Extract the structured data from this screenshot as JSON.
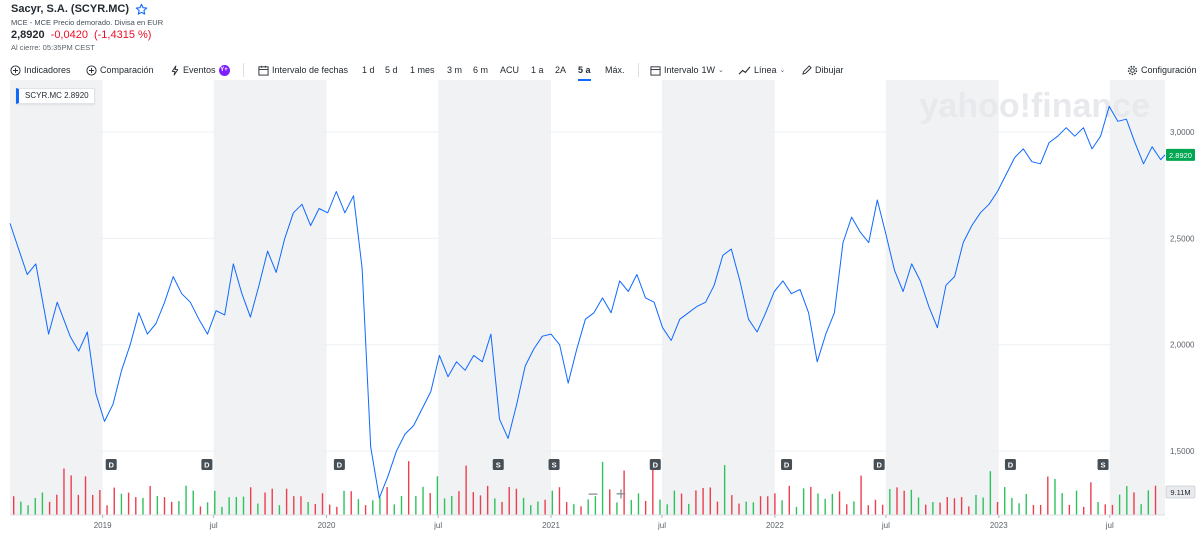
{
  "header": {
    "title": "Sacyr, S.A. (SCYR.MC)",
    "subtitle": "MCE - MCE Precio demorado. Divisa en EUR",
    "price": "2,8920",
    "change": "-0,0420",
    "change_pct": "(-1,4315 %)",
    "close_note": "Al cierre: 05:35PM CEST"
  },
  "toolbar": {
    "indicators": "Indicadores",
    "comparison": "Comparación",
    "events": "Eventos",
    "events_badge": "Y+",
    "date_range": "Intervalo de fechas",
    "ranges": [
      "1 d",
      "5 d",
      "1 mes",
      "3 m",
      "6 m",
      "ACU",
      "1 a",
      "2A",
      "5 a",
      "Máx."
    ],
    "active_range": "5 a",
    "interval": "Intervalo",
    "interval_value": "1W",
    "line": "Línea",
    "draw": "Dibujar",
    "settings": "Configuración"
  },
  "watermark": "yahoo!finance",
  "legend": {
    "symbol": "SCYR.MC",
    "value": "2.8920"
  },
  "colors": {
    "line": "#0f69ff",
    "up": "#2ec25e",
    "down": "#eb3f4f",
    "last_tag": "#00a651",
    "shade": "#f1f2f4",
    "grid": "#eef0f2"
  },
  "chart_data": {
    "type": "line",
    "series": [
      {
        "name": "SCYR.MC"
      }
    ],
    "x_start": "2018-08-03",
    "x_end": "2023-09-29",
    "ylim": [
      1.2,
      3.15
    ],
    "y_ticks": [
      1.5,
      2.0,
      2.5,
      3.0
    ],
    "y_tick_labels": [
      "1,5000",
      "2,0000",
      "2,5000",
      "3,0000"
    ],
    "x_ticks": [
      {
        "date": "2019-01-01",
        "label": "2019"
      },
      {
        "date": "2019-07-01",
        "label": "jul"
      },
      {
        "date": "2020-01-01",
        "label": "2020"
      },
      {
        "date": "2020-07-01",
        "label": "jul"
      },
      {
        "date": "2021-01-01",
        "label": "2021"
      },
      {
        "date": "2021-07-01",
        "label": "jul"
      },
      {
        "date": "2022-01-01",
        "label": "2022"
      },
      {
        "date": "2022-07-01",
        "label": "jul"
      },
      {
        "date": "2023-01-01",
        "label": "2023"
      },
      {
        "date": "2023-07-01",
        "label": "jul"
      }
    ],
    "last_value": 2.892,
    "last_value_label": "2.8920",
    "volume_label": "9.11M",
    "points": [
      [
        "2018-08-03",
        2.57
      ],
      [
        "2018-08-31",
        2.33
      ],
      [
        "2018-09-14",
        2.38
      ],
      [
        "2018-10-05",
        2.05
      ],
      [
        "2018-10-19",
        2.2
      ],
      [
        "2018-11-09",
        2.04
      ],
      [
        "2018-11-23",
        1.97
      ],
      [
        "2018-12-07",
        2.06
      ],
      [
        "2018-12-21",
        1.77
      ],
      [
        "2019-01-04",
        1.64
      ],
      [
        "2019-01-18",
        1.72
      ],
      [
        "2019-02-01",
        1.88
      ],
      [
        "2019-02-15",
        2.0
      ],
      [
        "2019-03-01",
        2.15
      ],
      [
        "2019-03-15",
        2.05
      ],
      [
        "2019-03-29",
        2.1
      ],
      [
        "2019-04-12",
        2.2
      ],
      [
        "2019-04-26",
        2.32
      ],
      [
        "2019-05-10",
        2.24
      ],
      [
        "2019-05-24",
        2.2
      ],
      [
        "2019-06-07",
        2.12
      ],
      [
        "2019-06-21",
        2.05
      ],
      [
        "2019-07-05",
        2.16
      ],
      [
        "2019-07-19",
        2.14
      ],
      [
        "2019-08-02",
        2.38
      ],
      [
        "2019-08-16",
        2.24
      ],
      [
        "2019-08-30",
        2.13
      ],
      [
        "2019-09-13",
        2.28
      ],
      [
        "2019-09-27",
        2.44
      ],
      [
        "2019-10-11",
        2.34
      ],
      [
        "2019-10-25",
        2.5
      ],
      [
        "2019-11-08",
        2.62
      ],
      [
        "2019-11-22",
        2.66
      ],
      [
        "2019-12-06",
        2.56
      ],
      [
        "2019-12-20",
        2.64
      ],
      [
        "2020-01-03",
        2.62
      ],
      [
        "2020-01-17",
        2.72
      ],
      [
        "2020-01-31",
        2.62
      ],
      [
        "2020-02-14",
        2.7
      ],
      [
        "2020-02-28",
        2.36
      ],
      [
        "2020-03-13",
        1.52
      ],
      [
        "2020-03-27",
        1.28
      ],
      [
        "2020-04-10",
        1.38
      ],
      [
        "2020-04-24",
        1.5
      ],
      [
        "2020-05-08",
        1.58
      ],
      [
        "2020-05-22",
        1.62
      ],
      [
        "2020-06-05",
        1.7
      ],
      [
        "2020-06-19",
        1.78
      ],
      [
        "2020-07-03",
        1.95
      ],
      [
        "2020-07-17",
        1.85
      ],
      [
        "2020-07-31",
        1.92
      ],
      [
        "2020-08-14",
        1.88
      ],
      [
        "2020-08-28",
        1.95
      ],
      [
        "2020-09-11",
        1.92
      ],
      [
        "2020-09-25",
        2.05
      ],
      [
        "2020-10-09",
        1.65
      ],
      [
        "2020-10-23",
        1.56
      ],
      [
        "2020-11-06",
        1.72
      ],
      [
        "2020-11-20",
        1.9
      ],
      [
        "2020-12-04",
        1.98
      ],
      [
        "2020-12-18",
        2.04
      ],
      [
        "2021-01-01",
        2.05
      ],
      [
        "2021-01-15",
        2.0
      ],
      [
        "2021-01-29",
        1.82
      ],
      [
        "2021-02-12",
        1.98
      ],
      [
        "2021-02-26",
        2.12
      ],
      [
        "2021-03-12",
        2.15
      ],
      [
        "2021-03-26",
        2.22
      ],
      [
        "2021-04-09",
        2.15
      ],
      [
        "2021-04-23",
        2.3
      ],
      [
        "2021-05-07",
        2.25
      ],
      [
        "2021-05-21",
        2.33
      ],
      [
        "2021-06-04",
        2.22
      ],
      [
        "2021-06-18",
        2.2
      ],
      [
        "2021-07-02",
        2.08
      ],
      [
        "2021-07-16",
        2.02
      ],
      [
        "2021-07-30",
        2.12
      ],
      [
        "2021-08-13",
        2.15
      ],
      [
        "2021-08-27",
        2.18
      ],
      [
        "2021-09-10",
        2.2
      ],
      [
        "2021-09-24",
        2.28
      ],
      [
        "2021-10-08",
        2.42
      ],
      [
        "2021-10-22",
        2.45
      ],
      [
        "2021-11-05",
        2.3
      ],
      [
        "2021-11-19",
        2.12
      ],
      [
        "2021-12-03",
        2.06
      ],
      [
        "2021-12-17",
        2.15
      ],
      [
        "2021-12-31",
        2.25
      ],
      [
        "2022-01-14",
        2.3
      ],
      [
        "2022-01-28",
        2.24
      ],
      [
        "2022-02-11",
        2.26
      ],
      [
        "2022-02-25",
        2.15
      ],
      [
        "2022-03-11",
        1.92
      ],
      [
        "2022-03-25",
        2.05
      ],
      [
        "2022-04-08",
        2.15
      ],
      [
        "2022-04-22",
        2.48
      ],
      [
        "2022-05-06",
        2.6
      ],
      [
        "2022-05-20",
        2.53
      ],
      [
        "2022-06-03",
        2.48
      ],
      [
        "2022-06-17",
        2.68
      ],
      [
        "2022-07-01",
        2.52
      ],
      [
        "2022-07-15",
        2.35
      ],
      [
        "2022-07-29",
        2.25
      ],
      [
        "2022-08-12",
        2.38
      ],
      [
        "2022-08-26",
        2.3
      ],
      [
        "2022-09-09",
        2.18
      ],
      [
        "2022-09-23",
        2.08
      ],
      [
        "2022-10-07",
        2.28
      ],
      [
        "2022-10-21",
        2.32
      ],
      [
        "2022-11-04",
        2.48
      ],
      [
        "2022-11-18",
        2.56
      ],
      [
        "2022-12-02",
        2.62
      ],
      [
        "2022-12-16",
        2.66
      ],
      [
        "2022-12-30",
        2.72
      ],
      [
        "2023-01-13",
        2.8
      ],
      [
        "2023-01-27",
        2.88
      ],
      [
        "2023-02-10",
        2.92
      ],
      [
        "2023-02-24",
        2.86
      ],
      [
        "2023-03-10",
        2.85
      ],
      [
        "2023-03-24",
        2.95
      ],
      [
        "2023-04-07",
        2.98
      ],
      [
        "2023-04-21",
        3.02
      ],
      [
        "2023-05-05",
        2.98
      ],
      [
        "2023-05-19",
        3.02
      ],
      [
        "2023-06-02",
        2.92
      ],
      [
        "2023-06-16",
        2.98
      ],
      [
        "2023-06-30",
        3.12
      ],
      [
        "2023-07-14",
        3.05
      ],
      [
        "2023-07-28",
        3.06
      ],
      [
        "2023-08-11",
        2.95
      ],
      [
        "2023-08-25",
        2.85
      ],
      [
        "2023-09-08",
        2.93
      ],
      [
        "2023-09-22",
        2.87
      ],
      [
        "2023-09-29",
        2.892
      ]
    ],
    "events": [
      {
        "date": "2019-01-15",
        "label": "D"
      },
      {
        "date": "2019-06-20",
        "label": "D"
      },
      {
        "date": "2020-01-22",
        "label": "D"
      },
      {
        "date": "2020-10-07",
        "label": "S"
      },
      {
        "date": "2021-01-06",
        "label": "S"
      },
      {
        "date": "2021-06-20",
        "label": "D"
      },
      {
        "date": "2022-01-20",
        "label": "D"
      },
      {
        "date": "2022-06-20",
        "label": "D"
      },
      {
        "date": "2023-01-20",
        "label": "D"
      },
      {
        "date": "2023-06-20",
        "label": "S"
      }
    ]
  }
}
